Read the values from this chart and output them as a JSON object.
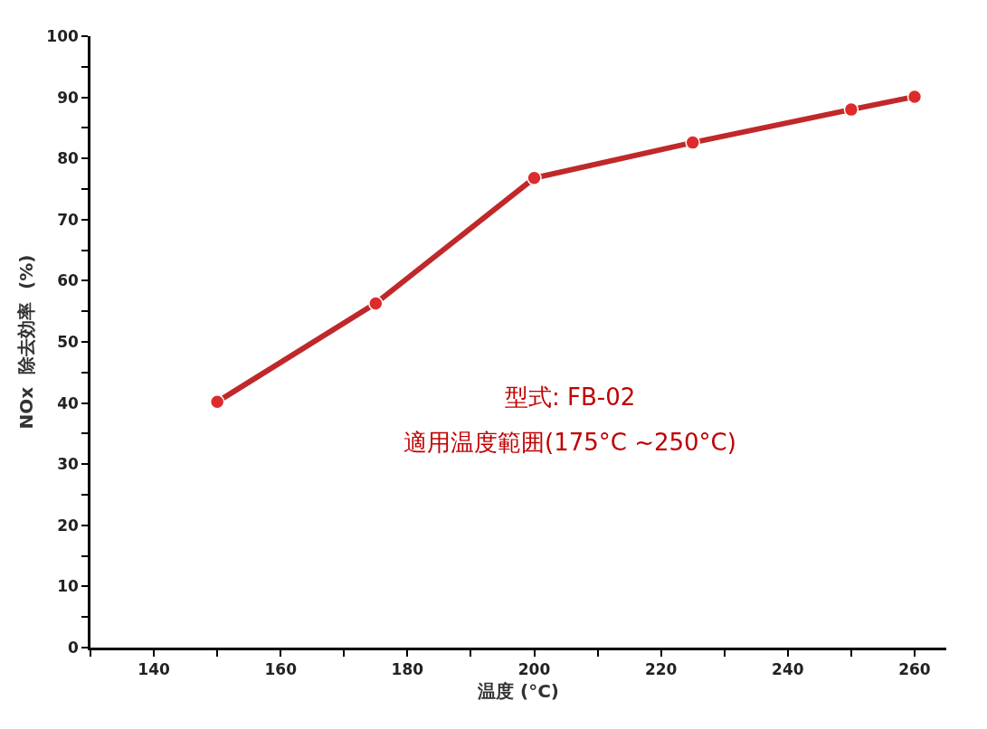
{
  "chart_data": {
    "type": "line",
    "xlabel": "温度 (°C)",
    "ylabel": "NOx  除去効率  (%)",
    "x": [
      150,
      175,
      200,
      225,
      250,
      260
    ],
    "series": [
      {
        "color": "#c0282a",
        "values": [
          40.2,
          56.3,
          76.8,
          82.6,
          88.0,
          90.1
        ]
      }
    ],
    "marker": "circle",
    "line_style": "solid",
    "legend": false,
    "xlim": [
      130,
      265
    ],
    "ylim": [
      0,
      100
    ],
    "xticks": [
      {
        "value": 130,
        "label": null
      },
      140,
      {
        "value": 150,
        "label": null
      },
      160,
      {
        "value": 170,
        "label": null
      },
      180,
      {
        "value": 190,
        "label": null
      },
      200,
      {
        "value": 210,
        "label": null
      },
      220,
      {
        "value": 230,
        "label": null
      },
      240,
      {
        "value": 250,
        "label": null
      },
      260
    ],
    "yticks": [
      0,
      {
        "value": 5,
        "label": null
      },
      10,
      {
        "value": 15,
        "label": null
      },
      20,
      {
        "value": 25,
        "label": null
      },
      30,
      {
        "value": 35,
        "label": null
      },
      40,
      {
        "value": 45,
        "label": null
      },
      50,
      {
        "value": 55,
        "label": null
      },
      60,
      {
        "value": 65,
        "label": null
      },
      70,
      {
        "value": 75,
        "label": null
      },
      80,
      {
        "value": 85,
        "label": null
      },
      90,
      {
        "value": 95,
        "label": null
      },
      100
    ],
    "annotations": [
      "型式: FB-02",
      "適用温度範囲(175°C ~250°C)"
    ]
  }
}
